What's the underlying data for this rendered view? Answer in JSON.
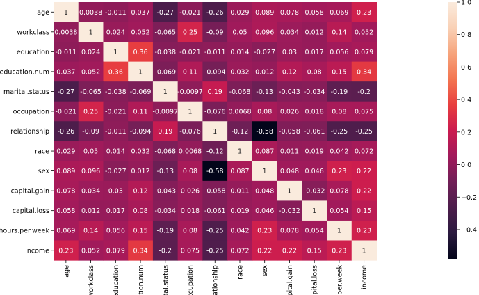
{
  "chart_data": {
    "type": "heatmap",
    "title": "",
    "xlabel": "",
    "ylabel": "",
    "row_labels": [
      "age",
      "workclass",
      "education",
      "education.num",
      "marital.status",
      "occupation",
      "relationship",
      "race",
      "sex",
      "capital.gain",
      "capital.loss",
      "hours.per.week",
      "income"
    ],
    "col_labels_visible": [
      "age",
      "workclass",
      "education",
      "ation.num",
      "ital.status",
      "ccupation",
      "lationship",
      "race",
      "sex",
      "apital.gain",
      "apital.loss",
      "-.per.week",
      "income"
    ],
    "values": [
      [
        1,
        0.0038,
        -0.011,
        0.037,
        -0.27,
        -0.021,
        -0.26,
        0.029,
        0.089,
        0.078,
        0.058,
        0.069,
        0.23
      ],
      [
        0.0038,
        1,
        0.024,
        0.052,
        -0.065,
        0.25,
        -0.09,
        0.05,
        0.096,
        0.034,
        0.012,
        0.14,
        0.052
      ],
      [
        -0.011,
        0.024,
        1,
        0.36,
        -0.038,
        -0.021,
        -0.011,
        0.014,
        -0.027,
        0.03,
        0.017,
        0.056,
        0.079
      ],
      [
        0.037,
        0.052,
        0.36,
        1,
        -0.069,
        0.11,
        -0.094,
        0.032,
        0.012,
        0.12,
        0.08,
        0.15,
        0.34
      ],
      [
        -0.27,
        -0.065,
        -0.038,
        -0.069,
        1,
        -0.0097,
        0.19,
        -0.068,
        -0.13,
        -0.043,
        -0.034,
        -0.19,
        -0.2
      ],
      [
        -0.021,
        0.25,
        -0.021,
        0.11,
        -0.0097,
        1,
        -0.076,
        0.0068,
        0.08,
        0.026,
        0.018,
        0.08,
        0.075
      ],
      [
        -0.26,
        -0.09,
        -0.011,
        -0.094,
        0.19,
        -0.076,
        1,
        -0.12,
        -0.58,
        -0.058,
        -0.061,
        -0.25,
        -0.25
      ],
      [
        0.029,
        0.05,
        0.014,
        0.032,
        -0.068,
        0.0068,
        -0.12,
        1,
        0.087,
        0.011,
        0.019,
        0.042,
        0.072
      ],
      [
        0.089,
        0.096,
        -0.027,
        0.012,
        -0.13,
        0.08,
        -0.58,
        0.087,
        1,
        0.048,
        0.046,
        0.23,
        0.22
      ],
      [
        0.078,
        0.034,
        0.03,
        0.12,
        -0.043,
        0.026,
        -0.058,
        0.011,
        0.048,
        1,
        -0.032,
        0.078,
        0.22
      ],
      [
        0.058,
        0.012,
        0.017,
        0.08,
        -0.034,
        0.018,
        -0.061,
        0.019,
        0.046,
        -0.032,
        1,
        0.054,
        0.15
      ],
      [
        0.069,
        0.14,
        0.056,
        0.15,
        -0.19,
        0.08,
        -0.25,
        0.042,
        0.23,
        0.078,
        0.054,
        1,
        0.23
      ],
      [
        0.23,
        0.052,
        0.079,
        0.34,
        -0.2,
        0.075,
        -0.25,
        0.072,
        0.22,
        0.22,
        0.15,
        0.23,
        1
      ]
    ],
    "value_labels": [
      [
        "1",
        "0.0038",
        "-0.011",
        "0.037",
        "-0.27",
        "-0.021",
        "-0.26",
        "0.029",
        "0.089",
        "0.078",
        "0.058",
        "0.069",
        "0.23"
      ],
      [
        "0.0038",
        "1",
        "0.024",
        "0.052",
        "-0.065",
        "0.25",
        "-0.09",
        "0.05",
        "0.096",
        "0.034",
        "0.012",
        "0.14",
        "0.052"
      ],
      [
        "-0.011",
        "0.024",
        "1",
        "0.36",
        "-0.038",
        "-0.021",
        "-0.011",
        "0.014",
        "-0.027",
        "0.03",
        "0.017",
        "0.056",
        "0.079"
      ],
      [
        "0.037",
        "0.052",
        "0.36",
        "1",
        "-0.069",
        "0.11",
        "-0.094",
        "0.032",
        "0.012",
        "0.12",
        "0.08",
        "0.15",
        "0.34"
      ],
      [
        "-0.27",
        "-0.065",
        "-0.038",
        "-0.069",
        "1",
        "-0.0097",
        "0.19",
        "-0.068",
        "-0.13",
        "-0.043",
        "-0.034",
        "-0.19",
        "-0.2"
      ],
      [
        "-0.021",
        "0.25",
        "-0.021",
        "0.11",
        "-0.0097",
        "1",
        "-0.076",
        "0.0068",
        "0.08",
        "0.026",
        "0.018",
        "0.08",
        "0.075"
      ],
      [
        "-0.26",
        "-0.09",
        "-0.011",
        "-0.094",
        "0.19",
        "-0.076",
        "1",
        "-0.12",
        "-0.58",
        "-0.058",
        "-0.061",
        "-0.25",
        "-0.25"
      ],
      [
        "0.029",
        "0.05",
        "0.014",
        "0.032",
        "-0.068",
        "0.0068",
        "-0.12",
        "1",
        "0.087",
        "0.011",
        "0.019",
        "0.042",
        "0.072"
      ],
      [
        "0.089",
        "0.096",
        "-0.027",
        "0.012",
        "-0.13",
        "0.08",
        "-0.58",
        "0.087",
        "1",
        "0.048",
        "0.046",
        "0.23",
        "0.22"
      ],
      [
        "0.078",
        "0.034",
        "0.03",
        "0.12",
        "-0.043",
        "0.026",
        "-0.058",
        "0.011",
        "0.048",
        "1",
        "-0.032",
        "0.078",
        "0.22"
      ],
      [
        "0.058",
        "0.012",
        "0.017",
        "0.08",
        "-0.034",
        "0.018",
        "-0.061",
        "0.019",
        "0.046",
        "-0.032",
        "1",
        "0.054",
        "0.15"
      ],
      [
        "0.069",
        "0.14",
        "0.056",
        "0.15",
        "-0.19",
        "0.08",
        "-0.25",
        "0.042",
        "0.23",
        "0.078",
        "0.054",
        "1",
        "0.23"
      ],
      [
        "0.23",
        "0.052",
        "0.079",
        "0.34",
        "-0.2",
        "0.075",
        "-0.25",
        "0.072",
        "0.22",
        "0.22",
        "0.15",
        "0.23",
        "1"
      ]
    ],
    "colorbar": {
      "vmin": -0.58,
      "vmax": 1.0,
      "ticks": [
        -0.4,
        -0.2,
        0.0,
        0.2,
        0.4,
        0.6,
        0.8,
        1.0
      ],
      "tick_labels": [
        "−0.4",
        "−0.2",
        "0.0",
        "0.2",
        "0.4",
        "0.6",
        "0.8",
        "1.0"
      ]
    },
    "colormap": "rocket",
    "colormap_stops": [
      "#03051a",
      "#2b1a3f",
      "#4c1d4b",
      "#711f57",
      "#a11a5b",
      "#cb1b4f",
      "#e83f3f",
      "#f37651",
      "#f6a47c",
      "#f9d1b6",
      "#faebdd"
    ]
  }
}
